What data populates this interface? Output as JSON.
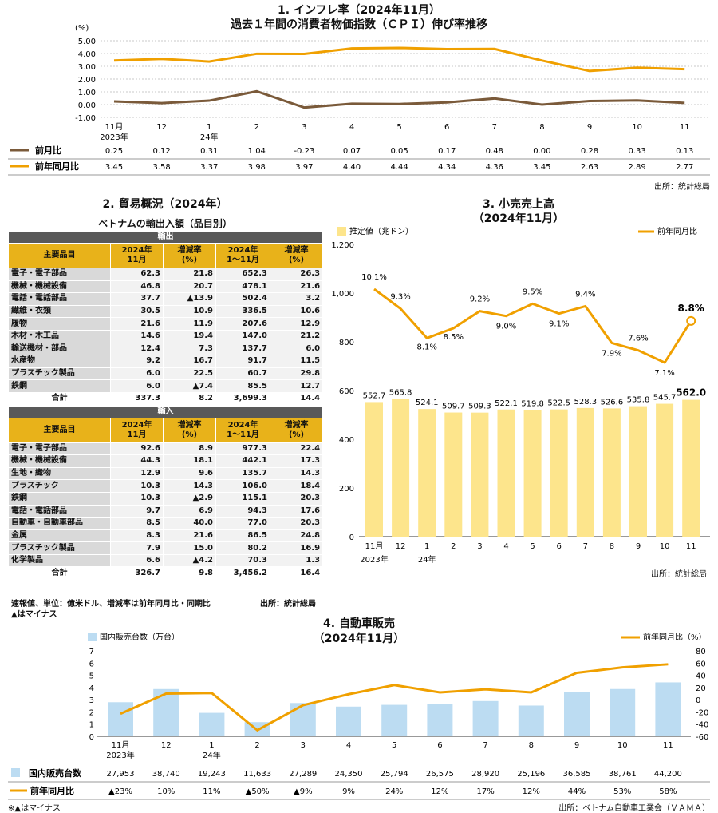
{
  "section1": {
    "title_line1": "1. インフレ率（2024年11月）",
    "title_line2": "過去１年間の消費者物価指数（ＣＰＩ）伸び率推移",
    "unit": "(%)",
    "y_ticks": [
      "5.00",
      "4.00",
      "3.00",
      "2.00",
      "1.00",
      "0.00",
      "-1.00"
    ],
    "x_labels": [
      "11月",
      "12",
      "1",
      "2",
      "3",
      "4",
      "5",
      "6",
      "7",
      "8",
      "9",
      "10",
      "11"
    ],
    "x_sublabels": [
      "2023年",
      "",
      "24年",
      "",
      "",
      "",
      "",
      "",
      "",
      "",
      "",
      "",
      ""
    ],
    "legend_mom": "前月比",
    "legend_yoy": "前年同月比",
    "mom_labels": [
      "0.25",
      "0.12",
      "0.31",
      "1.04",
      "-0.23",
      "0.07",
      "0.05",
      "0.17",
      "0.48",
      "0.00",
      "0.28",
      "0.33",
      "0.13"
    ],
    "yoy_labels": [
      "3.45",
      "3.58",
      "3.37",
      "3.98",
      "3.97",
      "4.40",
      "4.44",
      "4.34",
      "4.36",
      "3.45",
      "2.63",
      "2.89",
      "2.77"
    ],
    "source": "出所：統計総局",
    "colors": {
      "mom": "#7a5a3a",
      "yoy": "#f0a000"
    }
  },
  "section2": {
    "title": "2. 貿易概況（2024年）",
    "subtitle": "ベトナムの輸出入額（品目別）",
    "export_band": "輸出",
    "import_band": "輸入",
    "headers": [
      "主要品目",
      "2024年\n11月",
      "増減率\n(%)",
      "2024年\n1～11月",
      "増減率\n(%)"
    ],
    "exports": [
      [
        "電子・電子部品",
        "62.3",
        "21.8",
        "652.3",
        "26.3"
      ],
      [
        "機械・機械設備",
        "46.8",
        "20.7",
        "478.1",
        "21.6"
      ],
      [
        "電話・電話部品",
        "37.7",
        "▲13.9",
        "502.4",
        "3.2"
      ],
      [
        "繊維・衣類",
        "30.5",
        "10.9",
        "336.5",
        "10.6"
      ],
      [
        "履物",
        "21.6",
        "11.9",
        "207.6",
        "12.9"
      ],
      [
        "木材・木工品",
        "14.6",
        "19.4",
        "147.0",
        "21.2"
      ],
      [
        "輸送機材・部品",
        "12.4",
        "7.3",
        "137.7",
        "6.0"
      ],
      [
        "水産物",
        "9.2",
        "16.7",
        "91.7",
        "11.5"
      ],
      [
        "プラスチック製品",
        "6.0",
        "22.5",
        "60.7",
        "29.8"
      ],
      [
        "鉄鋼",
        "6.0",
        "▲7.4",
        "85.5",
        "12.7"
      ]
    ],
    "export_total": [
      "合計",
      "337.3",
      "8.2",
      "3,699.3",
      "14.4"
    ],
    "imports": [
      [
        "電子・電子部品",
        "92.6",
        "8.9",
        "977.3",
        "22.4"
      ],
      [
        "機械・機械設備",
        "44.3",
        "18.1",
        "442.1",
        "17.3"
      ],
      [
        "生地・織物",
        "12.9",
        "9.6",
        "135.7",
        "14.3"
      ],
      [
        "プラスチック",
        "10.3",
        "14.3",
        "106.0",
        "18.4"
      ],
      [
        "鉄鋼",
        "10.3",
        "▲2.9",
        "115.1",
        "20.3"
      ],
      [
        "電話・電話部品",
        "9.7",
        "6.9",
        "94.3",
        "17.6"
      ],
      [
        "自動車・自動車部品",
        "8.5",
        "40.0",
        "77.0",
        "20.3"
      ],
      [
        "金属",
        "8.3",
        "21.6",
        "86.5",
        "24.8"
      ],
      [
        "プラスチック製品",
        "7.9",
        "15.0",
        "80.2",
        "16.9"
      ],
      [
        "化学製品",
        "6.6",
        "▲4.2",
        "70.3",
        "1.3"
      ]
    ],
    "import_total": [
      "合計",
      "326.7",
      "9.8",
      "3,456.2",
      "16.4"
    ],
    "note1": "速報値、単位：億米ドル、増減率は前年同月比・同期比",
    "note2": "▲はマイナス",
    "source": "出所：統計総局"
  },
  "section3": {
    "title_line1": "3. 小売売上高",
    "title_line2": "（2024年11月）",
    "legend_bar": "推定値（兆ドン）",
    "legend_line": "前年同月比",
    "y_ticks": [
      "1,200",
      "1,000",
      "800",
      "600",
      "400",
      "200",
      "0"
    ],
    "x_labels": [
      "11月",
      "12",
      "1",
      "2",
      "3",
      "4",
      "5",
      "6",
      "7",
      "8",
      "9",
      "10",
      "11"
    ],
    "x_sublabels": [
      "2023年",
      "",
      "24年",
      "",
      "",
      "",
      "",
      "",
      "",
      "",
      "",
      "",
      ""
    ],
    "bar_labels": [
      "552.7",
      "565.8",
      "524.1",
      "509.7",
      "509.3",
      "522.1",
      "519.8",
      "522.5",
      "528.3",
      "526.6",
      "535.8",
      "545.7",
      "562.0"
    ],
    "line_labels": [
      "10.1%",
      "9.3%",
      "8.1%",
      "8.5%",
      "9.2%",
      "9.0%",
      "9.5%",
      "9.1%",
      "9.4%",
      "7.9%",
      "7.6%",
      "7.1%",
      "8.8%"
    ],
    "source": "出所：統計総局",
    "colors": {
      "bar": "#fde58c",
      "line": "#f0a000"
    }
  },
  "section4": {
    "title_line1": "4. 自動車販売",
    "title_line2": "（2024年11月）",
    "legend_bar": "国内販売台数（万台）",
    "legend_line": "前年同月比（%）",
    "y_left_ticks": [
      "7",
      "6",
      "5",
      "4",
      "3",
      "2",
      "1",
      "0"
    ],
    "y_right_ticks": [
      "80",
      "60",
      "40",
      "20",
      "0",
      "-20",
      "-40",
      "-60"
    ],
    "x_labels": [
      "11月",
      "12",
      "1",
      "2",
      "3",
      "4",
      "5",
      "6",
      "7",
      "8",
      "9",
      "10",
      "11"
    ],
    "x_sublabels": [
      "2023年",
      "",
      "24年",
      "",
      "",
      "",
      "",
      "",
      "",
      "",
      "",
      "",
      ""
    ],
    "row_bar_label": "国内販売台数",
    "row_line_label": "前年同月比",
    "units_labels": [
      "27,953",
      "38,740",
      "19,243",
      "11,633",
      "27,289",
      "24,350",
      "25,794",
      "26,575",
      "28,920",
      "25,196",
      "36,585",
      "38,761",
      "44,200"
    ],
    "yoy_labels": [
      "▲23%",
      "10%",
      "11%",
      "▲50%",
      "▲9%",
      "9%",
      "24%",
      "12%",
      "17%",
      "12%",
      "44%",
      "53%",
      "58%"
    ],
    "note": "※▲はマイナス",
    "source": "出所：ベトナム自動車工業会（ＶＡＭＡ）",
    "colors": {
      "bar": "#bcdcf2",
      "line": "#f0a000"
    }
  },
  "chart_data": [
    {
      "type": "line",
      "title": "過去１年間の消費者物価指数（ＣＰＩ）伸び率推移",
      "ylabel": "(%)",
      "ylim": [
        -1,
        5
      ],
      "categories": [
        "11月 2023年",
        "12",
        "1 24年",
        "2",
        "3",
        "4",
        "5",
        "6",
        "7",
        "8",
        "9",
        "10",
        "11"
      ],
      "series": [
        {
          "name": "前月比",
          "values": [
            0.25,
            0.12,
            0.31,
            1.04,
            -0.23,
            0.07,
            0.05,
            0.17,
            0.48,
            0.0,
            0.28,
            0.33,
            0.13
          ]
        },
        {
          "name": "前年同月比",
          "values": [
            3.45,
            3.58,
            3.37,
            3.98,
            3.97,
            4.4,
            4.44,
            4.34,
            4.36,
            3.45,
            2.63,
            2.89,
            2.77
          ]
        }
      ],
      "grid": true,
      "legend": "bottom-table"
    },
    {
      "type": "bar",
      "title": "小売売上高（2024年11月）",
      "ylim": [
        0,
        1200
      ],
      "categories": [
        "11月 2023年",
        "12",
        "1 24年",
        "2",
        "3",
        "4",
        "5",
        "6",
        "7",
        "8",
        "9",
        "10",
        "11"
      ],
      "series": [
        {
          "name": "推定値（兆ドン）",
          "values": [
            552.7,
            565.8,
            524.1,
            509.7,
            509.3,
            522.1,
            519.8,
            522.5,
            528.3,
            526.6,
            535.8,
            545.7,
            562.0
          ]
        },
        {
          "name": "前年同月比",
          "values": [
            10.1,
            9.3,
            8.1,
            8.5,
            9.2,
            9.0,
            9.5,
            9.1,
            9.4,
            7.9,
            7.6,
            7.1,
            8.8
          ]
        }
      ],
      "legend": "top"
    },
    {
      "type": "bar",
      "title": "自動車販売（2024年11月）",
      "ylim": [
        0,
        7
      ],
      "y2lim": [
        -60,
        80
      ],
      "categories": [
        "11月 2023年",
        "12",
        "1 24年",
        "2",
        "3",
        "4",
        "5",
        "6",
        "7",
        "8",
        "9",
        "10",
        "11"
      ],
      "series": [
        {
          "name": "国内販売台数（万台）",
          "values": [
            2.7953,
            3.874,
            1.9243,
            1.1633,
            2.7289,
            2.435,
            2.5794,
            2.6575,
            2.892,
            2.5196,
            3.6585,
            3.8761,
            4.42
          ]
        },
        {
          "name": "前年同月比（%）",
          "values": [
            -23,
            10,
            11,
            -50,
            -9,
            9,
            24,
            12,
            17,
            12,
            44,
            53,
            58
          ]
        }
      ],
      "legend": "top"
    }
  ]
}
